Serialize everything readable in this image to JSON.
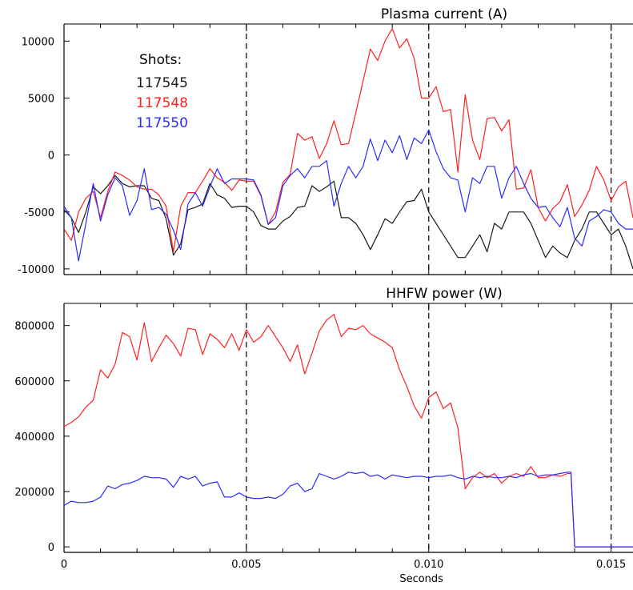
{
  "chart_data": [
    {
      "type": "line",
      "title": "Plasma current (A)",
      "xlabel": "",
      "ylabel": "",
      "xlim": [
        0,
        0.0156
      ],
      "ylim": [
        -10500,
        11500
      ],
      "yticks": [
        -10000,
        -5000,
        0,
        5000,
        10000
      ],
      "ytick_labels": [
        "-10000",
        "-5000",
        "0",
        "5000",
        "10000"
      ],
      "grid": false,
      "vlines": [
        0.005,
        0.01,
        0.015
      ],
      "legend": {
        "title": "Shots:",
        "placement": "top-left",
        "entries": [
          "117545",
          "117548",
          "117550"
        ]
      },
      "colors": {
        "117545": "#1a1a1a",
        "117548": "#ff2020",
        "117550": "#2b2bff"
      },
      "x": [
        0.0,
        0.0002,
        0.0004,
        0.0006,
        0.0008,
        0.001,
        0.0012,
        0.0014,
        0.0016,
        0.0018,
        0.002,
        0.0022,
        0.0024,
        0.0026,
        0.0028,
        0.003,
        0.0032,
        0.0034,
        0.0036,
        0.0038,
        0.004,
        0.0042,
        0.0044,
        0.0046,
        0.0048,
        0.005,
        0.0052,
        0.0054,
        0.0056,
        0.0058,
        0.006,
        0.0062,
        0.0064,
        0.0066,
        0.0068,
        0.007,
        0.0072,
        0.0074,
        0.0076,
        0.0078,
        0.008,
        0.0082,
        0.0084,
        0.0086,
        0.0088,
        0.009,
        0.0092,
        0.0094,
        0.0096,
        0.0098,
        0.01,
        0.0102,
        0.0104,
        0.0106,
        0.0108,
        0.011,
        0.0112,
        0.0114,
        0.0116,
        0.0118,
        0.012,
        0.0122,
        0.0124,
        0.0126,
        0.0128,
        0.013,
        0.0132,
        0.0134,
        0.0136,
        0.0138,
        0.014,
        0.0142,
        0.0144,
        0.0146,
        0.0148,
        0.015,
        0.0152,
        0.0154,
        0.0156
      ],
      "series": [
        {
          "name": "117545",
          "values": [
            -4800,
            -5500,
            -6800,
            -5000,
            -2800,
            -3400,
            -2700,
            -1800,
            -2500,
            -2800,
            -2700,
            -2700,
            -3800,
            -4000,
            -5600,
            -8800,
            -7800,
            -4800,
            -4600,
            -4300,
            -2500,
            -3500,
            -3800,
            -4600,
            -4500,
            -4500,
            -5000,
            -6200,
            -6500,
            -6500,
            -5800,
            -5400,
            -4600,
            -4500,
            -2700,
            -3200,
            -2800,
            -2300,
            -5500,
            -5500,
            -6000,
            -7000,
            -8300,
            -7000,
            -5600,
            -6000,
            -5000,
            -4100,
            -4000,
            -3000,
            -5000,
            -6000,
            -7000,
            -8000,
            -9000,
            -9000,
            -8000,
            -7000,
            -8500,
            -6000,
            -6500,
            -5000,
            -5000,
            -5000,
            -6000,
            -7500,
            -9000,
            -8000,
            -8600,
            -9000,
            -7500,
            -6500,
            -5000,
            -5000,
            -6000,
            -7000,
            -6500,
            -8000,
            -10000
          ]
        },
        {
          "name": "117548",
          "values": [
            -6500,
            -7500,
            -5000,
            -3800,
            -3200,
            -5500,
            -3200,
            -1500,
            -1800,
            -2200,
            -2800,
            -3000,
            -3000,
            -3500,
            -4500,
            -8500,
            -4500,
            -3300,
            -3300,
            -2300,
            -1200,
            -2000,
            -2400,
            -3100,
            -2200,
            -2300,
            -2300,
            -3600,
            -6100,
            -5000,
            -2400,
            -1700,
            1900,
            1300,
            1600,
            -300,
            1000,
            3000,
            900,
            1000,
            3700,
            6500,
            9300,
            8300,
            10000,
            11100,
            9400,
            10200,
            8500,
            5000,
            5000,
            6000,
            3800,
            4000,
            -1500,
            5300,
            1300,
            -400,
            3200,
            3300,
            2100,
            3100,
            -3000,
            -2900,
            -1300,
            -4600,
            -5800,
            -4700,
            -4100,
            -2600,
            -5400,
            -4400,
            -3100,
            -1000,
            -2200,
            -4000,
            -2800,
            -2300,
            -5500
          ]
        },
        {
          "name": "117550",
          "values": [
            -4500,
            -5500,
            -9300,
            -6000,
            -2500,
            -5800,
            -3500,
            -2000,
            -2700,
            -5300,
            -4000,
            -1200,
            -4800,
            -4600,
            -5200,
            -6600,
            -8300,
            -4300,
            -3300,
            -4500,
            -2800,
            -1200,
            -2500,
            -2100,
            -2100,
            -2100,
            -2200,
            -3500,
            -6100,
            -5500,
            -2700,
            -1800,
            -1200,
            -2000,
            -1000,
            -1000,
            -500,
            -4500,
            -2500,
            -1000,
            -2000,
            -1000,
            1400,
            -500,
            1300,
            200,
            1700,
            -400,
            1500,
            1000,
            2200,
            300,
            -1200,
            -2000,
            -2200,
            -5000,
            -2000,
            -2500,
            -1000,
            -1000,
            -3800,
            -2000,
            -1000,
            -2500,
            -3800,
            -4600,
            -4500,
            -5500,
            -6300,
            -4600,
            -7300,
            -8000,
            -5800,
            -5400,
            -4800,
            -5000,
            -6000,
            -6500,
            -6500
          ]
        }
      ]
    },
    {
      "type": "line",
      "title": "HHFW power (W)",
      "xlabel": "Seconds",
      "ylabel": "",
      "xlim": [
        0,
        0.0156
      ],
      "ylim": [
        -20000,
        880000
      ],
      "xticks": [
        0,
        0.005,
        0.01,
        0.015
      ],
      "xtick_labels": [
        "0",
        "0.005",
        "0.010",
        "0.015"
      ],
      "yticks": [
        0,
        200000,
        400000,
        600000,
        800000
      ],
      "ytick_labels": [
        "0",
        "200000",
        "400000",
        "600000",
        "800000"
      ],
      "grid": false,
      "vlines": [
        0.005,
        0.01,
        0.015
      ],
      "colors": {
        "117548": "#ff2020",
        "117550": "#2b2bff"
      },
      "x": [
        0.0,
        0.0002,
        0.0004,
        0.0006,
        0.0008,
        0.001,
        0.0012,
        0.0014,
        0.0016,
        0.0018,
        0.002,
        0.0022,
        0.0024,
        0.0026,
        0.0028,
        0.003,
        0.0032,
        0.0034,
        0.0036,
        0.0038,
        0.004,
        0.0042,
        0.0044,
        0.0046,
        0.0048,
        0.005,
        0.0052,
        0.0054,
        0.0056,
        0.0058,
        0.006,
        0.0062,
        0.0064,
        0.0066,
        0.0068,
        0.007,
        0.0072,
        0.0074,
        0.0076,
        0.0078,
        0.008,
        0.0082,
        0.0084,
        0.0086,
        0.0088,
        0.009,
        0.0092,
        0.0094,
        0.0096,
        0.0098,
        0.01,
        0.0102,
        0.0104,
        0.0106,
        0.0108,
        0.011,
        0.0112,
        0.0114,
        0.0116,
        0.0118,
        0.012,
        0.0122,
        0.0124,
        0.0126,
        0.0128,
        0.013,
        0.0132,
        0.0134,
        0.0136,
        0.0138,
        0.0139,
        0.014,
        0.0142,
        0.0144,
        0.0146,
        0.0148,
        0.015,
        0.0152,
        0.0154,
        0.0156
      ],
      "series": [
        {
          "name": "117548",
          "values": [
            435000,
            450000,
            470000,
            505000,
            530000,
            640000,
            610000,
            660000,
            775000,
            760000,
            675000,
            810000,
            670000,
            720000,
            765000,
            735000,
            690000,
            790000,
            785000,
            695000,
            770000,
            750000,
            720000,
            770000,
            710000,
            785000,
            740000,
            760000,
            800000,
            760000,
            720000,
            670000,
            730000,
            625000,
            700000,
            780000,
            820000,
            840000,
            760000,
            790000,
            785000,
            800000,
            770000,
            755000,
            740000,
            720000,
            640000,
            580000,
            510000,
            465000,
            540000,
            560000,
            500000,
            520000,
            430000,
            210000,
            250000,
            270000,
            250000,
            265000,
            230000,
            255000,
            265000,
            255000,
            290000,
            250000,
            250000,
            260000,
            255000,
            265000,
            265000,
            0,
            0,
            0,
            0,
            0,
            0,
            0,
            0,
            0
          ]
        },
        {
          "name": "117550",
          "values": [
            150000,
            165000,
            160000,
            160000,
            165000,
            180000,
            220000,
            210000,
            225000,
            230000,
            240000,
            255000,
            250000,
            250000,
            245000,
            215000,
            255000,
            245000,
            255000,
            220000,
            230000,
            235000,
            180000,
            180000,
            195000,
            180000,
            175000,
            175000,
            180000,
            175000,
            190000,
            220000,
            230000,
            200000,
            210000,
            265000,
            255000,
            245000,
            255000,
            270000,
            265000,
            270000,
            255000,
            260000,
            245000,
            260000,
            255000,
            250000,
            255000,
            255000,
            250000,
            255000,
            255000,
            260000,
            250000,
            245000,
            255000,
            250000,
            255000,
            250000,
            250000,
            255000,
            250000,
            260000,
            265000,
            255000,
            260000,
            260000,
            265000,
            270000,
            270000,
            0,
            0,
            0,
            0,
            0,
            0,
            0,
            0,
            0
          ]
        }
      ]
    }
  ]
}
